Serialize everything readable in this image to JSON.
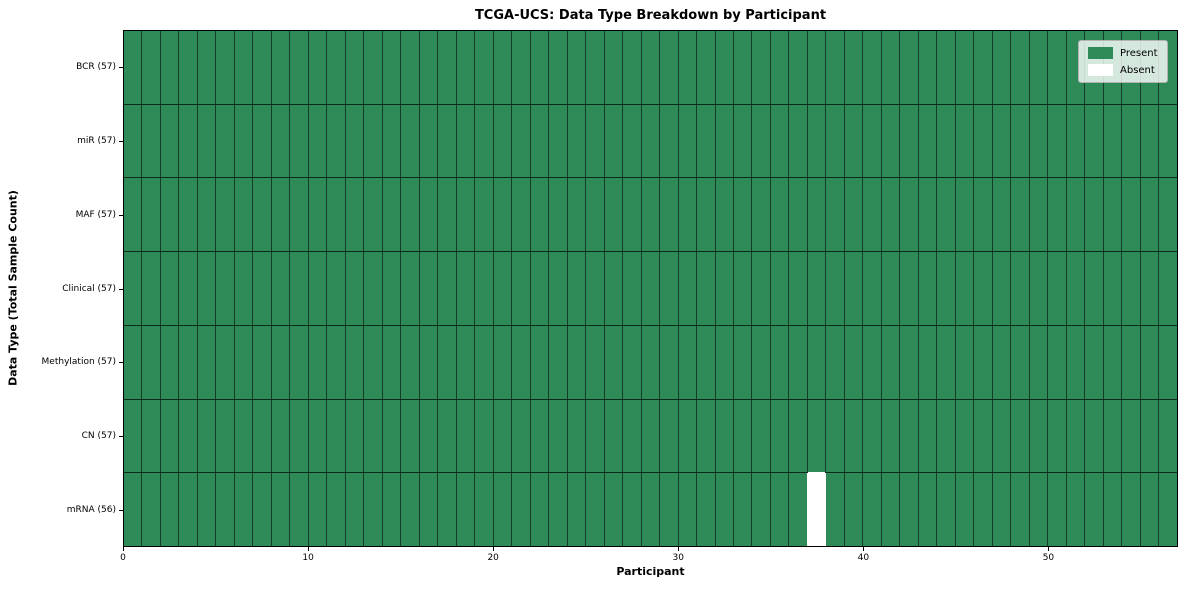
{
  "chart_data": {
    "type": "heatmap",
    "title": "TCGA-UCS: Data Type Breakdown by Participant",
    "xlabel": "Participant",
    "ylabel": "Data Type (Total Sample Count)",
    "n_participants": 57,
    "x_range": [
      0,
      57
    ],
    "x_ticks": [
      0,
      10,
      20,
      30,
      40,
      50
    ],
    "grid": true,
    "rows": [
      {
        "label": "BCR (57)",
        "total": 57,
        "absent_participants": []
      },
      {
        "label": "miR (57)",
        "total": 57,
        "absent_participants": []
      },
      {
        "label": "MAF (57)",
        "total": 57,
        "absent_participants": []
      },
      {
        "label": "Clinical (57)",
        "total": 57,
        "absent_participants": []
      },
      {
        "label": "Methylation (57)",
        "total": 57,
        "absent_participants": []
      },
      {
        "label": "CN (57)",
        "total": 57,
        "absent_participants": []
      },
      {
        "label": "mRNA (56)",
        "total": 56,
        "absent_participants": [
          37
        ]
      }
    ],
    "legend": {
      "position": "upper-right",
      "entries": [
        {
          "label": "Present",
          "color": "#2e8b57"
        },
        {
          "label": "Absent",
          "color": "#ffffff"
        }
      ]
    },
    "colors": {
      "present": "#2e8b57",
      "absent": "#ffffff",
      "cell_edge": "rgba(0,0,0,0.55)",
      "row_edge": "#0d2b1a",
      "axes_edge": "#000000"
    }
  }
}
